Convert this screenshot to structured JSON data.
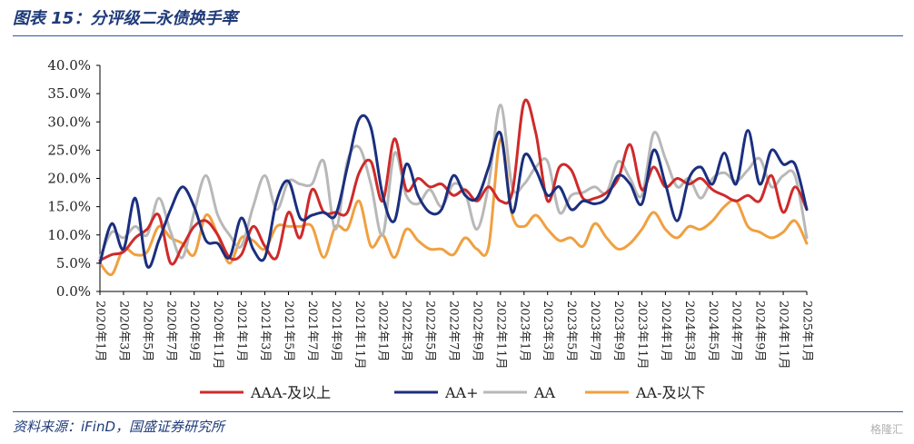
{
  "header": {
    "title": "图表 15：分评级二永债换手率"
  },
  "footer": {
    "source": "资料来源：iFinD，国盛证券研究所",
    "watermark": "格隆汇"
  },
  "chart_data": {
    "type": "line",
    "ylim": [
      0,
      40
    ],
    "y_ticks": [
      "0.0%",
      "5.0%",
      "10.0%",
      "15.0%",
      "20.0%",
      "25.0%",
      "30.0%",
      "35.0%",
      "40.0%"
    ],
    "x_tick_labels": [
      "2020年1月",
      "2020年3月",
      "2020年5月",
      "2020年7月",
      "2020年9月",
      "2020年11月",
      "2021年1月",
      "2021年3月",
      "2021年5月",
      "2021年7月",
      "2021年9月",
      "2021年11月",
      "2022年1月",
      "2022年3月",
      "2022年5月",
      "2022年7月",
      "2022年9月",
      "2022年11月",
      "2023年1月",
      "2023年3月",
      "2023年5月",
      "2023年7月",
      "2023年9月",
      "2023年11月",
      "2024年1月",
      "2024年3月",
      "2024年5月",
      "2024年7月",
      "2024年9月",
      "2024年11月",
      "2025年1月"
    ],
    "legend_position": "bottom",
    "series": [
      {
        "name": "AAA-及以上",
        "color": "#cf2a2a",
        "values": [
          5.5,
          6.5,
          7.0,
          9.5,
          11.0,
          13.5,
          5.0,
          8.0,
          11.5,
          12.5,
          10.0,
          6.0,
          6.5,
          11.5,
          8.0,
          6.0,
          14.0,
          9.5,
          18.0,
          14.0,
          14.0,
          14.0,
          21.0,
          23.0,
          16.0,
          27.0,
          18.0,
          20.0,
          18.5,
          19.0,
          17.0,
          18.0,
          16.0,
          18.5,
          16.0,
          17.5,
          33.5,
          28.0,
          16.0,
          22.0,
          21.5,
          16.5,
          16.5,
          17.5,
          20.0,
          26.0,
          18.0,
          22.0,
          18.5,
          20.0,
          19.0,
          20.0,
          18.0,
          17.0,
          16.0,
          17.0,
          16.0,
          20.5,
          14.0,
          18.5,
          14.5
        ]
      },
      {
        "name": "AA+",
        "color": "#1b2f7e",
        "values": [
          5.0,
          12.0,
          7.5,
          16.5,
          4.5,
          9.0,
          14.5,
          18.5,
          15.0,
          9.0,
          8.5,
          6.0,
          13.0,
          7.5,
          6.0,
          16.0,
          19.5,
          13.0,
          13.5,
          14.0,
          13.5,
          22.0,
          30.5,
          29.0,
          17.0,
          12.5,
          22.5,
          17.0,
          14.0,
          14.5,
          20.5,
          17.0,
          16.5,
          22.0,
          28.0,
          14.0,
          24.0,
          21.5,
          17.0,
          18.5,
          14.5,
          16.0,
          15.5,
          16.5,
          20.5,
          19.0,
          15.5,
          25.0,
          19.0,
          12.5,
          20.0,
          22.0,
          19.0,
          24.5,
          19.0,
          28.5,
          19.0,
          25.0,
          22.5,
          22.5,
          14.5
        ]
      },
      {
        "name": "AA",
        "color": "#b8b8b8",
        "values": [
          6.0,
          10.5,
          9.5,
          11.5,
          10.0,
          16.5,
          10.5,
          6.0,
          14.0,
          20.5,
          13.5,
          10.0,
          8.0,
          15.0,
          20.5,
          14.5,
          19.5,
          19.0,
          19.0,
          23.0,
          11.0,
          23.0,
          25.5,
          19.0,
          10.0,
          24.5,
          17.0,
          15.5,
          18.0,
          15.0,
          19.0,
          17.5,
          11.0,
          19.0,
          33.0,
          18.5,
          19.0,
          22.0,
          23.0,
          14.0,
          17.0,
          17.5,
          18.5,
          17.5,
          23.0,
          20.0,
          17.0,
          28.0,
          23.5,
          18.5,
          20.0,
          16.5,
          20.0,
          21.0,
          19.5,
          21.5,
          23.5,
          18.5,
          20.5,
          20.5,
          9.5
        ]
      },
      {
        "name": "AA-及以下",
        "color": "#f0a040",
        "values": [
          5.0,
          3.0,
          7.5,
          6.5,
          7.0,
          11.5,
          9.5,
          8.5,
          6.5,
          13.5,
          10.0,
          5.0,
          9.5,
          9.0,
          7.5,
          11.5,
          11.5,
          11.5,
          11.5,
          6.0,
          11.5,
          11.0,
          16.0,
          8.0,
          10.0,
          6.0,
          11.0,
          9.0,
          7.5,
          7.5,
          6.5,
          9.5,
          7.5,
          8.0,
          27.0,
          13.5,
          11.5,
          13.5,
          11.0,
          9.0,
          9.5,
          8.0,
          12.0,
          9.5,
          7.5,
          8.5,
          11.0,
          14.0,
          11.0,
          9.5,
          11.5,
          11.0,
          12.5,
          15.0,
          16.0,
          11.5,
          10.5,
          9.5,
          10.5,
          12.5,
          8.5
        ]
      }
    ]
  }
}
